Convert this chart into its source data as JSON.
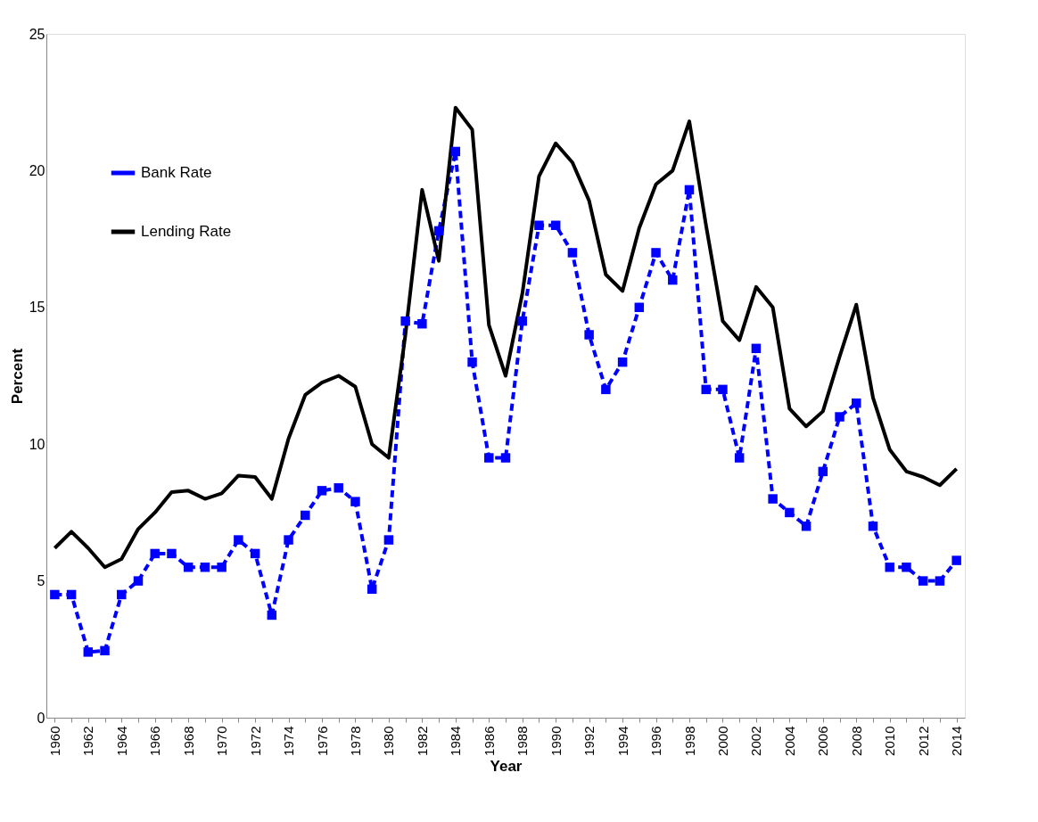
{
  "chart_data": {
    "type": "line",
    "xlabel": "Year",
    "ylabel": "Percent",
    "categories": [
      "1960",
      null,
      "1962",
      null,
      "1964",
      null,
      "1966",
      null,
      "1968",
      null,
      "1970",
      null,
      "1972",
      null,
      "1974",
      null,
      "1976",
      null,
      "1978",
      null,
      "1980",
      null,
      "1982",
      null,
      "1984",
      null,
      "1986",
      null,
      "1988",
      null,
      "1990",
      null,
      "1992",
      null,
      "1994",
      null,
      "1996",
      null,
      "1998",
      null,
      "2000",
      null,
      "2002",
      null,
      "2004",
      null,
      "2006",
      null,
      "2008",
      null,
      "2010",
      null,
      "2012",
      null,
      "2014"
    ],
    "series": [
      {
        "name": "Bank Rate",
        "color": "#0000ff",
        "marker": "square",
        "line_style": "dashed",
        "values": [
          4.5,
          4.5,
          2.4,
          2.45,
          4.5,
          5,
          6,
          6,
          5.5,
          5.5,
          5.5,
          6.5,
          6,
          3.75,
          6.5,
          7.4,
          8.3,
          8.4,
          7.9,
          4.7,
          6.5,
          14.5,
          14.4,
          17.8,
          20.7,
          13,
          9.5,
          9.5,
          14.5,
          18,
          18,
          17,
          14,
          12,
          13,
          15,
          17,
          16,
          19.3,
          12,
          12,
          9.5,
          13.5,
          8,
          7.5,
          7,
          9,
          11,
          11.5,
          7,
          5.5,
          5.5,
          5,
          5,
          5.75
        ]
      },
      {
        "name": "Lending Rate",
        "color": "#000000",
        "marker": "none",
        "line_style": "solid",
        "values": [
          6.2,
          6.8,
          6.2,
          5.5,
          5.8,
          6.9,
          7.5,
          8.25,
          8.3,
          8.0,
          8.2,
          8.85,
          8.8,
          8.0,
          10.2,
          11.8,
          12.25,
          12.5,
          12.1,
          10.0,
          9.5,
          14,
          19.3,
          16.7,
          22.3,
          21.5,
          14.35,
          12.5,
          15.5,
          19.8,
          21,
          20.3,
          18.9,
          16.2,
          15.6,
          17.9,
          19.5,
          20,
          21.8,
          18,
          14.5,
          13.8,
          15.75,
          15,
          11.3,
          10.65,
          11.2,
          13.2,
          15.1,
          11.7,
          9.8,
          9.0,
          8.8,
          8.5,
          9.1
        ]
      }
    ],
    "ylim": [
      0,
      25
    ],
    "yticks": [
      0,
      5,
      10,
      15,
      20,
      25
    ],
    "grid": false,
    "legend": "top left"
  }
}
